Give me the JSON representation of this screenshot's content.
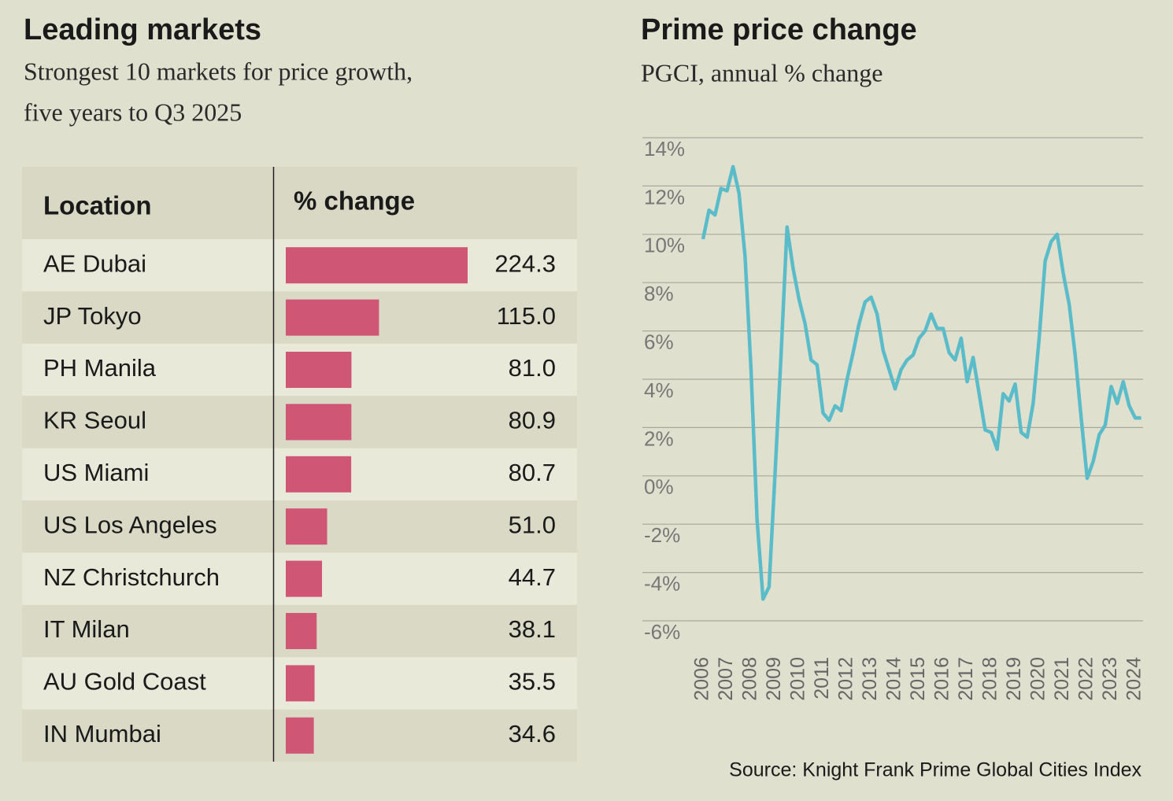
{
  "chart_data": [
    {
      "type": "table-bar",
      "title": "Leading markets",
      "subtitle": [
        "Strongest 10 markets for price growth,",
        "five years to Q3 2025"
      ],
      "column_headers": [
        "Location",
        "% change"
      ],
      "categories": [
        "AE Dubai",
        "JP Tokyo",
        "PH Manila",
        "KR Seoul",
        "US Miami",
        "US Los Angeles",
        "NZ Christchurch",
        "IT Milan",
        "AU Gold Coast",
        "IN Mumbai"
      ],
      "values": [
        224.3,
        115.0,
        81.0,
        80.9,
        80.7,
        51.0,
        44.7,
        38.1,
        35.5,
        34.6
      ],
      "value_labels": [
        "224.3",
        "115.0",
        "81.0",
        "80.9",
        "80.7",
        "51.0",
        "44.7",
        "38.1",
        "35.5",
        "34.6"
      ],
      "color": "#d05676"
    },
    {
      "type": "line",
      "title": "Prime price change",
      "subtitle": "PGCI, annual % change",
      "categories": [
        "2006",
        null,
        null,
        null,
        "2007",
        null,
        null,
        null,
        "2008",
        null,
        null,
        null,
        "2009",
        null,
        null,
        null,
        "2010",
        null,
        null,
        null,
        "2011",
        null,
        null,
        null,
        "2012",
        null,
        null,
        null,
        "2013",
        null,
        null,
        null,
        "2014",
        null,
        null,
        null,
        "2015",
        null,
        null,
        null,
        "2016",
        null,
        null,
        null,
        "2017",
        null,
        null,
        null,
        "2018",
        null,
        null,
        null,
        "2019",
        null,
        null,
        null,
        "2020",
        null,
        null,
        null,
        "2021",
        null,
        null,
        null,
        "2022",
        null,
        null,
        null,
        "2023",
        null,
        null,
        null,
        "2024",
        null
      ],
      "values": [
        9.8,
        11.0,
        10.8,
        11.9,
        11.8,
        12.8,
        11.7,
        9.1,
        4.4,
        -1.8,
        -5.1,
        -4.6,
        0.1,
        5.0,
        10.3,
        8.6,
        7.3,
        6.3,
        4.8,
        4.6,
        2.6,
        2.3,
        2.9,
        2.7,
        4.0,
        5.1,
        6.3,
        7.2,
        7.4,
        6.7,
        5.2,
        4.4,
        3.6,
        4.4,
        4.8,
        5.0,
        5.7,
        6.0,
        6.7,
        6.1,
        6.1,
        5.1,
        4.8,
        5.7,
        3.9,
        4.9,
        3.4,
        1.9,
        1.8,
        1.1,
        3.4,
        3.1,
        3.8,
        1.8,
        1.6,
        3.0,
        5.7,
        8.9,
        9.7,
        10.0,
        8.4,
        7.1,
        5.0,
        2.4,
        -0.1,
        0.6,
        1.7,
        2.1,
        3.7,
        3.0,
        3.9,
        2.9,
        2.4,
        2.4
      ],
      "color": "#5bbcc9",
      "ylim": [
        -6,
        14
      ],
      "yticks": [
        {
          "value": 14,
          "label": "14%"
        },
        {
          "value": 12,
          "label": "12%"
        },
        {
          "value": 10,
          "label": "10%"
        },
        {
          "value": 8,
          "label": "8%"
        },
        {
          "value": 6,
          "label": "6%"
        },
        {
          "value": 4,
          "label": "4%"
        },
        {
          "value": 2,
          "label": "2%"
        },
        {
          "value": 0,
          "label": "0%"
        },
        {
          "value": -2,
          "label": "-2%"
        },
        {
          "value": -4,
          "label": "-4%"
        },
        {
          "value": -6,
          "label": "-6%"
        }
      ],
      "grid": true,
      "source": "Source: Knight Frank Prime Global Cities Index"
    }
  ]
}
